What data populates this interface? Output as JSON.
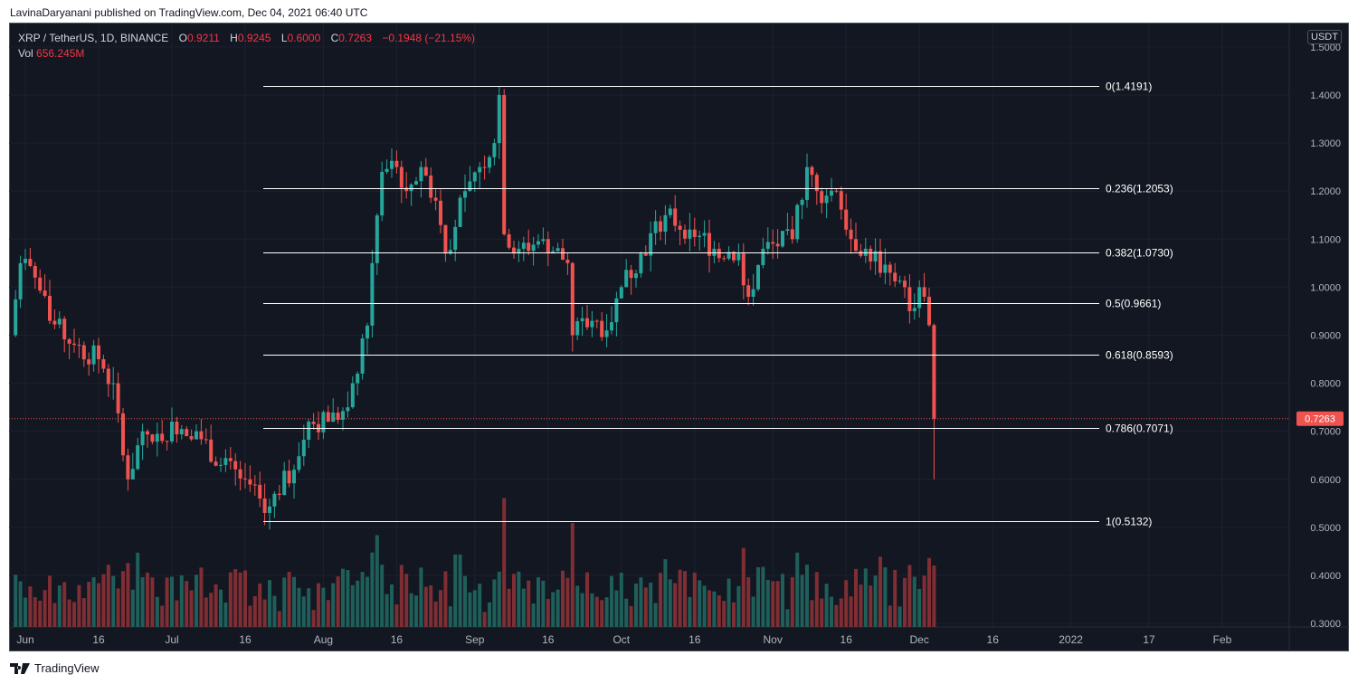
{
  "publisher_line": "LavinaDaryanani published on TradingView.com, Dec 04, 2021 06:40 UTC",
  "legend": {
    "symbol": "XRP / TetherUS, 1D, BINANCE",
    "o_label": "O",
    "o": "0.9211",
    "h_label": "H",
    "h": "0.9245",
    "l_label": "L",
    "l": "0.6000",
    "c_label": "C",
    "c": "0.7263",
    "change": "−0.1948 (−21.15%)",
    "vol_label": "Vol",
    "vol": "656.245M"
  },
  "currency_button": "USDT",
  "brand": "TradingView",
  "colors": {
    "up": "#26a69a",
    "down": "#ef5350",
    "vol_up": "#1f5f5a",
    "vol_down": "#7f2e33",
    "bg": "#131722"
  },
  "chart_data": {
    "type": "candlestick",
    "title": "XRP / TetherUS, 1D, BINANCE",
    "ylim": [
      0.3,
      1.52
    ],
    "y_ticks": [
      "1.5000",
      "1.4000",
      "1.3000",
      "1.2000",
      "1.1000",
      "1.0000",
      "0.9000",
      "0.8000",
      "0.7000",
      "0.6000",
      "0.5000",
      "0.4000",
      "0.3000"
    ],
    "x_ticks": [
      {
        "label": "Jun",
        "day": 0
      },
      {
        "label": "16",
        "day": 15
      },
      {
        "label": "Jul",
        "day": 30
      },
      {
        "label": "16",
        "day": 45
      },
      {
        "label": "Aug",
        "day": 61
      },
      {
        "label": "16",
        "day": 76
      },
      {
        "label": "Sep",
        "day": 92
      },
      {
        "label": "16",
        "day": 107
      },
      {
        "label": "Oct",
        "day": 122
      },
      {
        "label": "16",
        "day": 137
      },
      {
        "label": "Nov",
        "day": 153
      },
      {
        "label": "16",
        "day": 168
      },
      {
        "label": "Dec",
        "day": 183
      },
      {
        "label": "16",
        "day": 198
      },
      {
        "label": "2022",
        "day": 214
      },
      {
        "label": "17",
        "day": 230
      },
      {
        "label": "Feb",
        "day": 245
      }
    ],
    "close_keypoints": [
      [
        -3,
        0.9
      ],
      [
        -1,
        1.05
      ],
      [
        2,
        1.02
      ],
      [
        5,
        0.93
      ],
      [
        10,
        0.88
      ],
      [
        15,
        0.85
      ],
      [
        18,
        0.8
      ],
      [
        20,
        0.65
      ],
      [
        21,
        0.6
      ],
      [
        24,
        0.7
      ],
      [
        28,
        0.68
      ],
      [
        30,
        0.72
      ],
      [
        35,
        0.7
      ],
      [
        40,
        0.63
      ],
      [
        45,
        0.6
      ],
      [
        49,
        0.53
      ],
      [
        51,
        0.57
      ],
      [
        55,
        0.62
      ],
      [
        58,
        0.72
      ],
      [
        62,
        0.72
      ],
      [
        66,
        0.75
      ],
      [
        68,
        0.82
      ],
      [
        70,
        0.92
      ],
      [
        71,
        1.05
      ],
      [
        73,
        1.24
      ],
      [
        76,
        1.25
      ],
      [
        78,
        1.2
      ],
      [
        81,
        1.25
      ],
      [
        84,
        1.18
      ],
      [
        86,
        1.07
      ],
      [
        90,
        1.2
      ],
      [
        93,
        1.25
      ],
      [
        96,
        1.3
      ],
      [
        97,
        1.4
      ],
      [
        98,
        1.11
      ],
      [
        101,
        1.08
      ],
      [
        106,
        1.1
      ],
      [
        111,
        1.05
      ],
      [
        112,
        0.9
      ],
      [
        116,
        0.93
      ],
      [
        119,
        0.91
      ],
      [
        122,
        1.0
      ],
      [
        126,
        1.07
      ],
      [
        131,
        1.15
      ],
      [
        136,
        1.12
      ],
      [
        141,
        1.08
      ],
      [
        146,
        1.07
      ],
      [
        148,
        0.98
      ],
      [
        151,
        1.08
      ],
      [
        157,
        1.1
      ],
      [
        160,
        1.25
      ],
      [
        162,
        1.2
      ],
      [
        166,
        1.2
      ],
      [
        169,
        1.1
      ],
      [
        172,
        1.08
      ],
      [
        177,
        1.03
      ],
      [
        180,
        1.0
      ],
      [
        181,
        0.95
      ],
      [
        183,
        1.0
      ],
      [
        184,
        0.98
      ],
      [
        185,
        0.9211
      ]
    ],
    "last_candle": {
      "day": 186,
      "open": 0.9211,
      "high": 0.9245,
      "low": 0.6,
      "close": 0.7263,
      "volume_m": 656.245
    },
    "current_price": "0.7263",
    "fib_levels": [
      {
        "ratio": "0",
        "price": 1.4191,
        "label": "0(1.4191)"
      },
      {
        "ratio": "0.236",
        "price": 1.2053,
        "label": "0.236(1.2053)"
      },
      {
        "ratio": "0.382",
        "price": 1.073,
        "label": "0.382(1.0730)"
      },
      {
        "ratio": "0.5",
        "price": 0.9661,
        "label": "0.5(0.9661)"
      },
      {
        "ratio": "0.618",
        "price": 0.8593,
        "label": "0.618(0.8593)"
      },
      {
        "ratio": "0.786",
        "price": 0.7071,
        "label": "0.786(0.7071)"
      },
      {
        "ratio": "1",
        "price": 0.5132,
        "label": "1(0.5132)"
      }
    ]
  }
}
